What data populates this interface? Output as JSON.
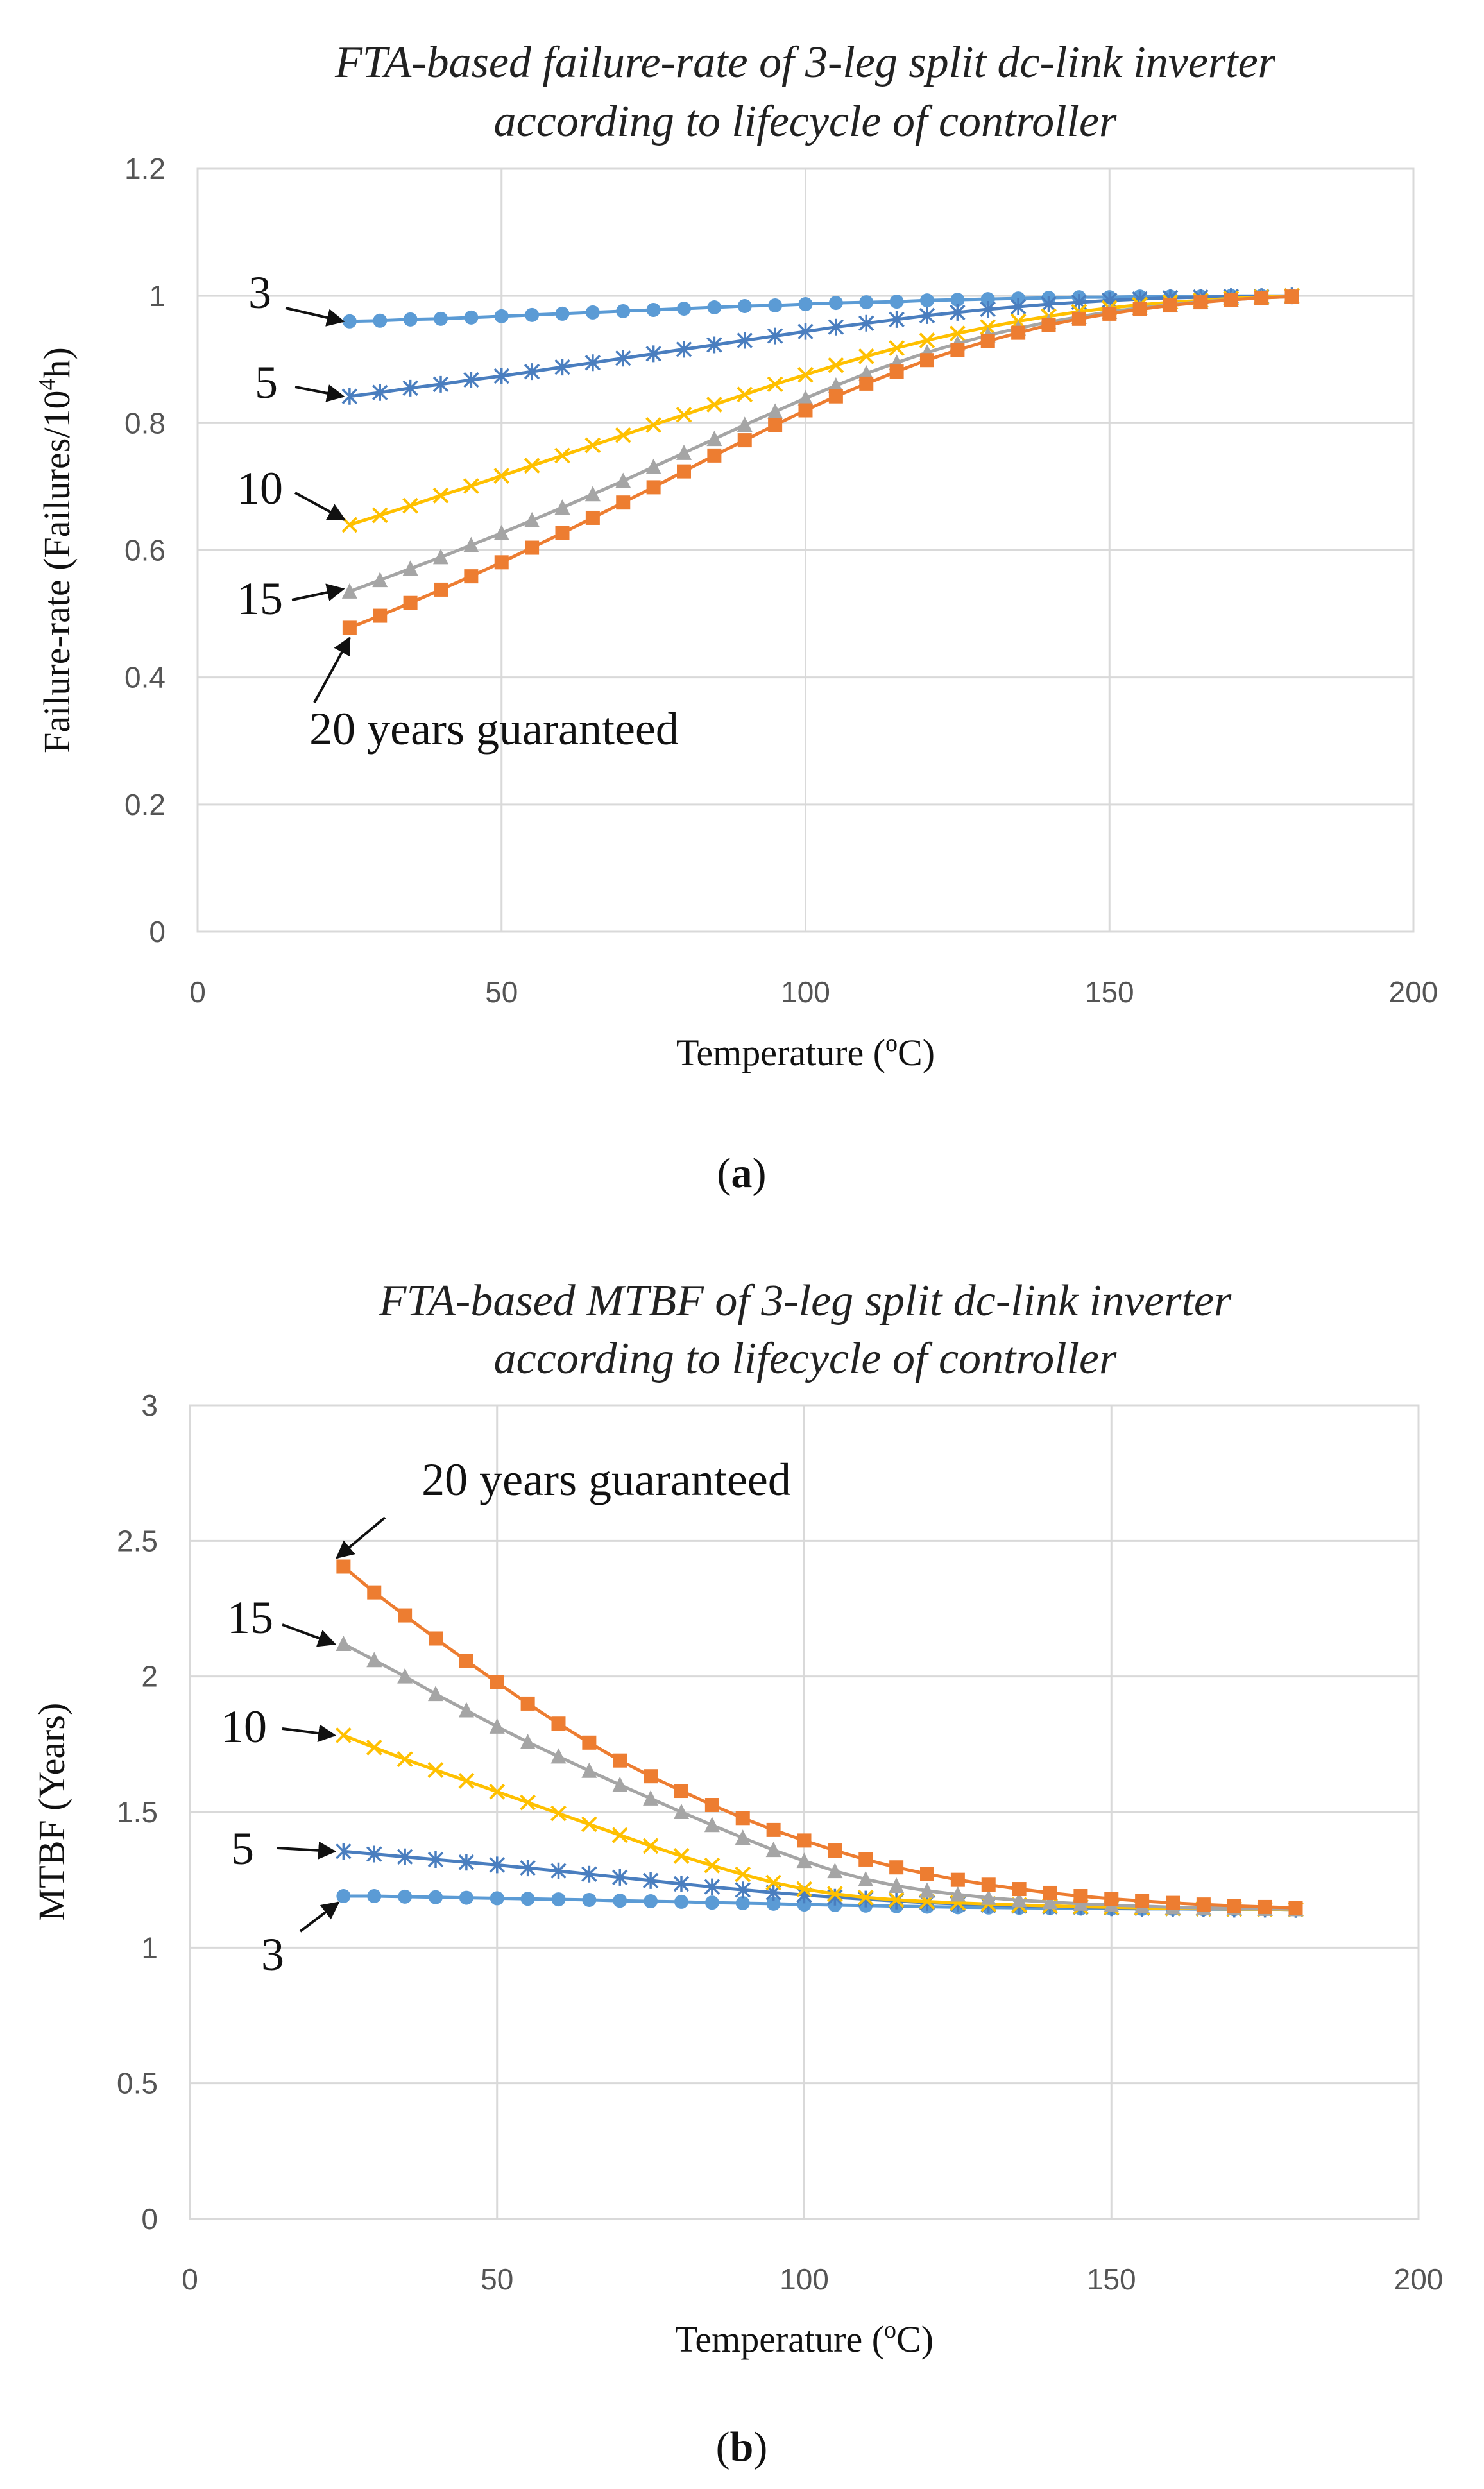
{
  "chart_data": [
    {
      "id": "a",
      "panel_label": "a",
      "type": "line",
      "title_lines": [
        "FTA-based failure-rate of 3-leg split dc-link inverter",
        "according to lifecycle of controller"
      ],
      "xlabel": "Temperature (",
      "xlabel_sup": "o",
      "xlabel_end": "C)",
      "ylabel": "Failure-rate (Failures/10",
      "ylabel_sup": "4",
      "ylabel_end": "h)",
      "xlim": [
        0,
        200
      ],
      "ylim": [
        0,
        1.2
      ],
      "xticks": [
        0,
        50,
        100,
        150,
        200
      ],
      "yticks": [
        0,
        0.2,
        0.4,
        0.6,
        0.8,
        1,
        1.2
      ],
      "ytick_labels": [
        "0",
        "0.2",
        "0.4",
        "0.6",
        "0.8",
        "1",
        "1.2"
      ],
      "x": [
        25,
        30,
        35,
        40,
        45,
        50,
        55,
        60,
        65,
        70,
        75,
        80,
        85,
        90,
        95,
        100,
        105,
        110,
        115,
        120,
        125,
        130,
        135,
        140,
        145,
        150,
        155,
        160,
        165,
        170,
        175,
        180
      ],
      "series": [
        {
          "name": "3",
          "color": "#5b9bd5",
          "marker": "circle",
          "values": [
            0.96,
            0.961,
            0.963,
            0.964,
            0.966,
            0.968,
            0.97,
            0.972,
            0.974,
            0.976,
            0.978,
            0.98,
            0.982,
            0.984,
            0.985,
            0.987,
            0.989,
            0.99,
            0.991,
            0.993,
            0.994,
            0.995,
            0.996,
            0.997,
            0.998,
            0.998,
            0.999,
            0.999,
            0.999,
            1.0,
            1.0,
            1.0
          ]
        },
        {
          "name": "5",
          "color": "#4a7ebf",
          "marker": "star",
          "values": [
            0.842,
            0.848,
            0.855,
            0.861,
            0.868,
            0.874,
            0.881,
            0.888,
            0.895,
            0.902,
            0.909,
            0.916,
            0.923,
            0.93,
            0.937,
            0.944,
            0.951,
            0.957,
            0.963,
            0.969,
            0.974,
            0.979,
            0.983,
            0.987,
            0.99,
            0.993,
            0.995,
            0.997,
            0.998,
            0.999,
            0.999,
            1.0
          ]
        },
        {
          "name": "10",
          "color": "#ffc000",
          "marker": "x",
          "values": [
            0.64,
            0.655,
            0.67,
            0.686,
            0.701,
            0.717,
            0.733,
            0.749,
            0.765,
            0.781,
            0.797,
            0.813,
            0.829,
            0.845,
            0.861,
            0.876,
            0.891,
            0.905,
            0.918,
            0.93,
            0.941,
            0.951,
            0.96,
            0.968,
            0.975,
            0.981,
            0.986,
            0.99,
            0.993,
            0.996,
            0.998,
            1.0
          ]
        },
        {
          "name": "15",
          "color": "#a5a5a5",
          "marker": "triangle",
          "values": [
            0.535,
            0.553,
            0.571,
            0.589,
            0.608,
            0.627,
            0.647,
            0.667,
            0.688,
            0.709,
            0.731,
            0.753,
            0.775,
            0.797,
            0.818,
            0.839,
            0.859,
            0.878,
            0.895,
            0.911,
            0.925,
            0.938,
            0.949,
            0.959,
            0.967,
            0.975,
            0.981,
            0.986,
            0.991,
            0.994,
            0.997,
            0.999
          ]
        },
        {
          "name": "20 years guaranteed",
          "color": "#ed7d31",
          "marker": "square",
          "values": [
            0.478,
            0.497,
            0.517,
            0.538,
            0.559,
            0.581,
            0.604,
            0.627,
            0.651,
            0.675,
            0.699,
            0.724,
            0.749,
            0.773,
            0.797,
            0.82,
            0.842,
            0.862,
            0.881,
            0.899,
            0.915,
            0.929,
            0.942,
            0.954,
            0.964,
            0.972,
            0.979,
            0.985,
            0.99,
            0.994,
            0.997,
            0.999
          ]
        }
      ],
      "annotations": [
        {
          "text": "3",
          "series": "3"
        },
        {
          "text": "5",
          "series": "5"
        },
        {
          "text": "10",
          "series": "10"
        },
        {
          "text": "15",
          "series": "15"
        },
        {
          "text": "20 years guaranteed",
          "series": "20 years guaranteed"
        }
      ]
    },
    {
      "id": "b",
      "panel_label": "b",
      "type": "line",
      "title_lines": [
        "FTA-based MTBF of 3-leg split dc-link inverter",
        "according to lifecycle of controller"
      ],
      "xlabel": "Temperature (",
      "xlabel_sup": "o",
      "xlabel_end": "C)",
      "ylabel": "MTBF (Years)",
      "ylabel_sup": "",
      "ylabel_end": "",
      "xlim": [
        0,
        200
      ],
      "ylim": [
        0,
        3
      ],
      "xticks": [
        0,
        50,
        100,
        150,
        200
      ],
      "yticks": [
        0,
        0.5,
        1,
        1.5,
        2,
        2.5,
        3
      ],
      "ytick_labels": [
        "0",
        "0.5",
        "1",
        "1.5",
        "2",
        "2.5",
        "3"
      ],
      "x": [
        25,
        30,
        35,
        40,
        45,
        50,
        55,
        60,
        65,
        70,
        75,
        80,
        85,
        90,
        95,
        100,
        105,
        110,
        115,
        120,
        125,
        130,
        135,
        140,
        145,
        150,
        155,
        160,
        165,
        170,
        175,
        180
      ],
      "series": [
        {
          "name": "3",
          "color": "#5b9bd5",
          "marker": "circle",
          "values": [
            1.19,
            1.19,
            1.188,
            1.186,
            1.184,
            1.182,
            1.18,
            1.178,
            1.176,
            1.173,
            1.171,
            1.169,
            1.166,
            1.164,
            1.162,
            1.159,
            1.157,
            1.155,
            1.153,
            1.151,
            1.149,
            1.148,
            1.147,
            1.146,
            1.145,
            1.144,
            1.143,
            1.143,
            1.142,
            1.142,
            1.142,
            1.141
          ]
        },
        {
          "name": "5",
          "color": "#4a7ebf",
          "marker": "star",
          "values": [
            1.355,
            1.345,
            1.335,
            1.325,
            1.315,
            1.305,
            1.294,
            1.283,
            1.271,
            1.259,
            1.247,
            1.235,
            1.224,
            1.213,
            1.203,
            1.194,
            1.186,
            1.179,
            1.172,
            1.166,
            1.161,
            1.157,
            1.154,
            1.151,
            1.149,
            1.147,
            1.145,
            1.144,
            1.143,
            1.142,
            1.142,
            1.141
          ]
        },
        {
          "name": "10",
          "color": "#ffc000",
          "marker": "x",
          "values": [
            1.783,
            1.738,
            1.695,
            1.655,
            1.615,
            1.575,
            1.535,
            1.495,
            1.455,
            1.415,
            1.375,
            1.338,
            1.303,
            1.27,
            1.24,
            1.216,
            1.198,
            1.185,
            1.176,
            1.17,
            1.165,
            1.161,
            1.157,
            1.154,
            1.151,
            1.149,
            1.147,
            1.145,
            1.144,
            1.143,
            1.142,
            1.141
          ]
        },
        {
          "name": "15",
          "color": "#a5a5a5",
          "marker": "triangle",
          "values": [
            2.12,
            2.06,
            2.0,
            1.935,
            1.875,
            1.815,
            1.758,
            1.705,
            1.652,
            1.6,
            1.55,
            1.5,
            1.452,
            1.405,
            1.36,
            1.32,
            1.282,
            1.252,
            1.228,
            1.21,
            1.196,
            1.184,
            1.175,
            1.168,
            1.162,
            1.157,
            1.153,
            1.149,
            1.147,
            1.145,
            1.143,
            1.142
          ]
        },
        {
          "name": "20 years guaranteed",
          "color": "#ed7d31",
          "marker": "square",
          "values": [
            2.405,
            2.31,
            2.225,
            2.14,
            2.058,
            1.978,
            1.9,
            1.826,
            1.756,
            1.69,
            1.632,
            1.578,
            1.526,
            1.478,
            1.434,
            1.395,
            1.358,
            1.325,
            1.296,
            1.272,
            1.25,
            1.232,
            1.216,
            1.202,
            1.19,
            1.18,
            1.172,
            1.165,
            1.159,
            1.154,
            1.15,
            1.147
          ]
        }
      ],
      "annotations": [
        {
          "text": "20 years guaranteed",
          "series": "20 years guaranteed"
        },
        {
          "text": "15",
          "series": "15"
        },
        {
          "text": "10",
          "series": "10"
        },
        {
          "text": "5",
          "series": "5"
        },
        {
          "text": "3",
          "series": "3"
        }
      ]
    }
  ]
}
